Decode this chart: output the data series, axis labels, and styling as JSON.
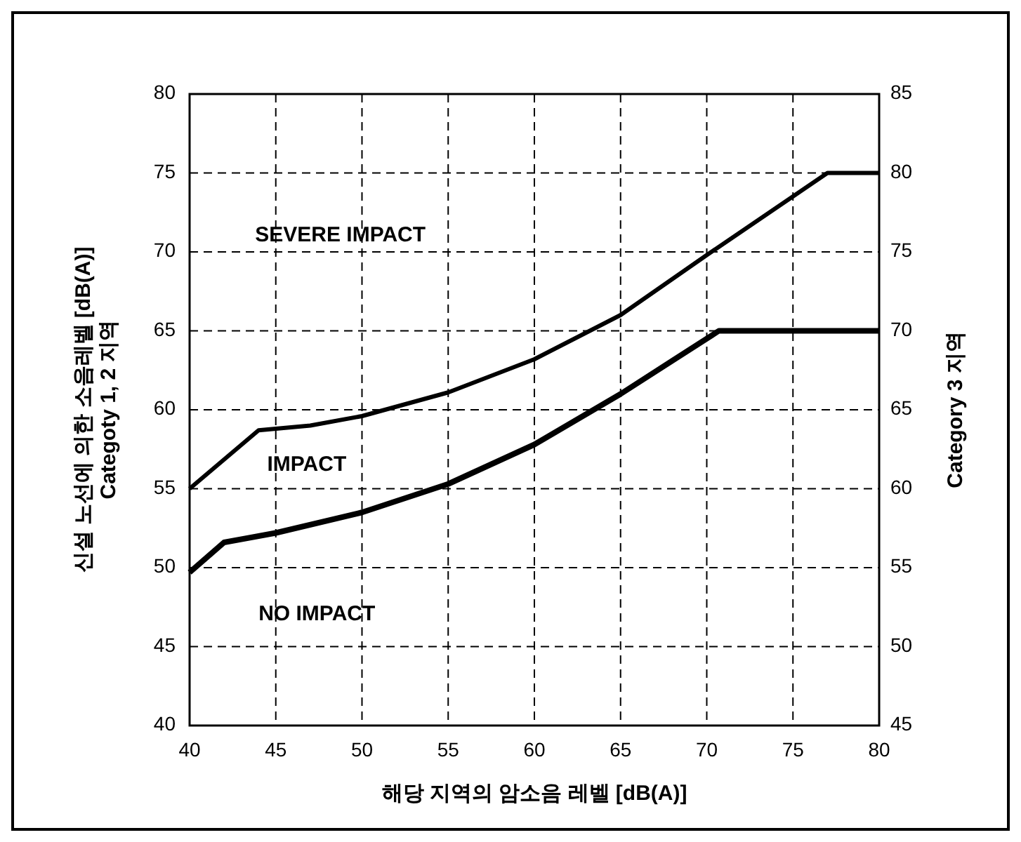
{
  "chart_data": {
    "type": "line",
    "xlabel": "해당 지역의 암소음 레벨 [dB(A)]",
    "ylabel": "신설 노선에 의한 소음레벨 [dB(A)]\nCategoty 1, 2 지역",
    "y2label": "Category 3 지역",
    "xlim": [
      40,
      80
    ],
    "xticks": [
      40,
      45,
      50,
      55,
      60,
      65,
      70,
      75,
      80
    ],
    "ylim": [
      40,
      80
    ],
    "yticks": [
      40,
      45,
      50,
      55,
      60,
      65,
      70,
      75,
      80
    ],
    "y2lim": [
      45,
      85
    ],
    "y2ticks": [
      45,
      50,
      55,
      60,
      65,
      70,
      75,
      80,
      85
    ],
    "grid": true,
    "line_style": "solid",
    "annotations": [
      "SEVERE IMPACT",
      "IMPACT",
      "NO IMPACT"
    ],
    "series": [
      {
        "color": "#000000",
        "x": [
          40,
          44,
          47,
          50,
          55,
          60,
          65,
          70,
          77,
          80
        ],
        "values": [
          55,
          58.7,
          59,
          59.6,
          61.1,
          63.2,
          66,
          69.8,
          75,
          75
        ]
      },
      {
        "color": "#000000",
        "x": [
          40,
          42,
          45,
          50,
          55,
          60,
          65,
          70.7,
          80
        ],
        "values": [
          49.7,
          51.6,
          52.2,
          53.5,
          55.3,
          57.8,
          61,
          65,
          65
        ]
      }
    ]
  }
}
